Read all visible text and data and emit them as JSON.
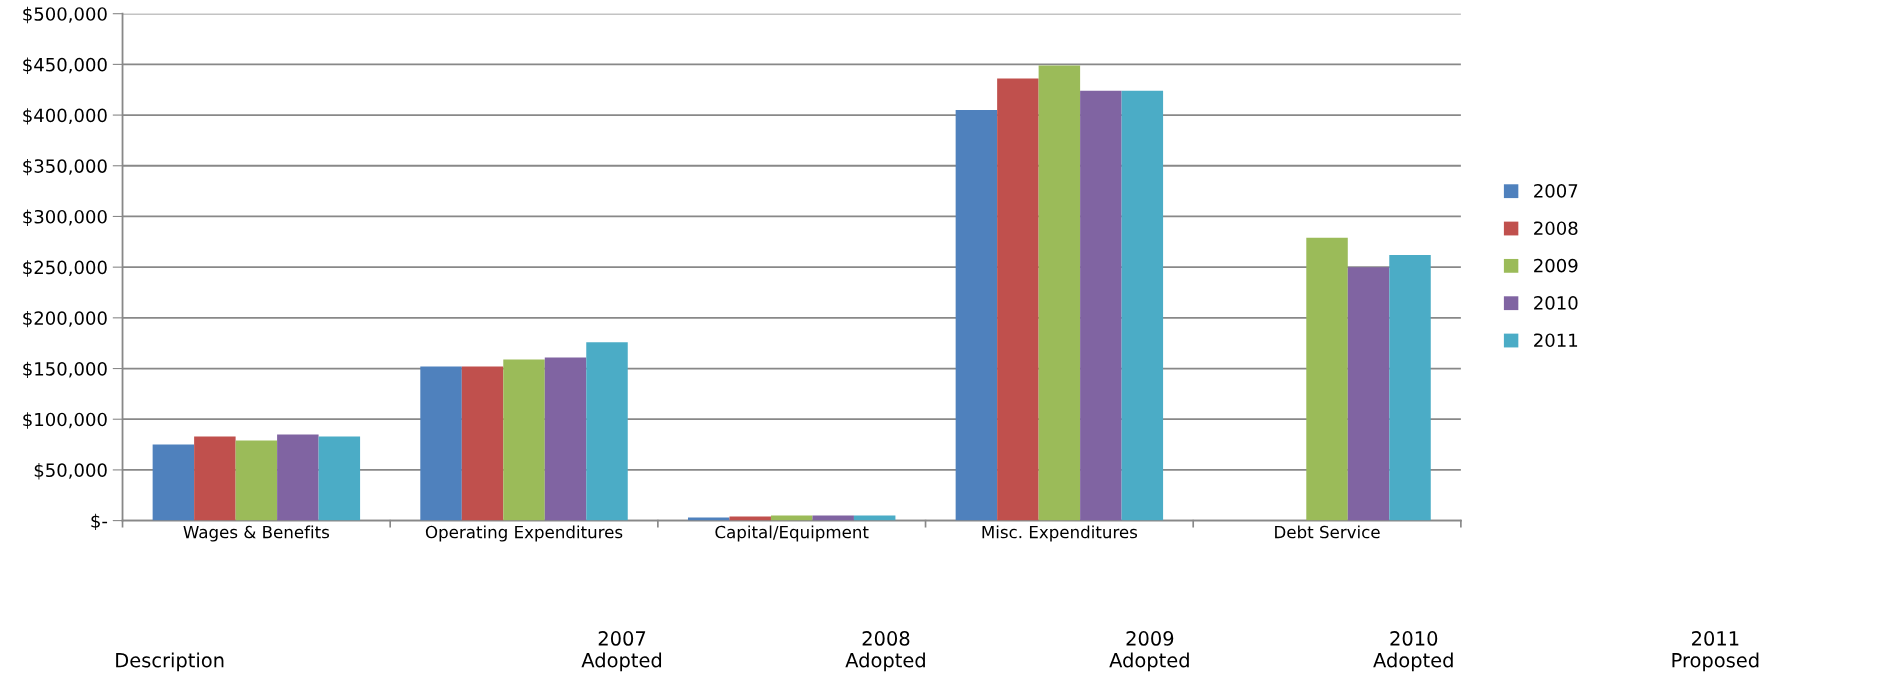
{
  "chart_data": {
    "type": "bar",
    "categories": [
      "Wages & Benefits",
      "Operating Expenditures",
      "Capital/Equipment",
      "Misc. Expenditures",
      "Debt Service"
    ],
    "series": [
      {
        "name": "2007",
        "color": "#4f81bd",
        "values": [
          75000,
          152000,
          3000,
          405000,
          null
        ]
      },
      {
        "name": "2008",
        "color": "#c0504d",
        "values": [
          83000,
          152000,
          4000,
          436000,
          null
        ]
      },
      {
        "name": "2009",
        "color": "#9bbb59",
        "values": [
          79000,
          159000,
          5000,
          449000,
          279000
        ]
      },
      {
        "name": "2010",
        "color": "#8064a2",
        "values": [
          85000,
          161000,
          5000,
          424000,
          250000
        ]
      },
      {
        "name": "2011",
        "color": "#4bacc6",
        "values": [
          83000,
          176000,
          5000,
          424000,
          262000
        ]
      }
    ],
    "ylim": [
      0,
      500000
    ],
    "yticks": [
      {
        "value": 0,
        "label": "$-"
      },
      {
        "value": 50000,
        "label": "$50,000"
      },
      {
        "value": 100000,
        "label": "$100,000"
      },
      {
        "value": 150000,
        "label": "$150,000"
      },
      {
        "value": 200000,
        "label": "$200,000"
      },
      {
        "value": 250000,
        "label": "$250,000"
      },
      {
        "value": 300000,
        "label": "$300,000"
      },
      {
        "value": 350000,
        "label": "$350,000"
      },
      {
        "value": 400000,
        "label": "$400,000"
      },
      {
        "value": 450000,
        "label": "$450,000"
      },
      {
        "value": 500000,
        "label": "$500,000"
      }
    ],
    "grid": "y",
    "legend": "right",
    "annotations": [
      "Description",
      "2007\nAdopted",
      "2008\nAdopted",
      "2009\nAdopted",
      "2010\nAdopted",
      "2011\nProposed"
    ]
  }
}
